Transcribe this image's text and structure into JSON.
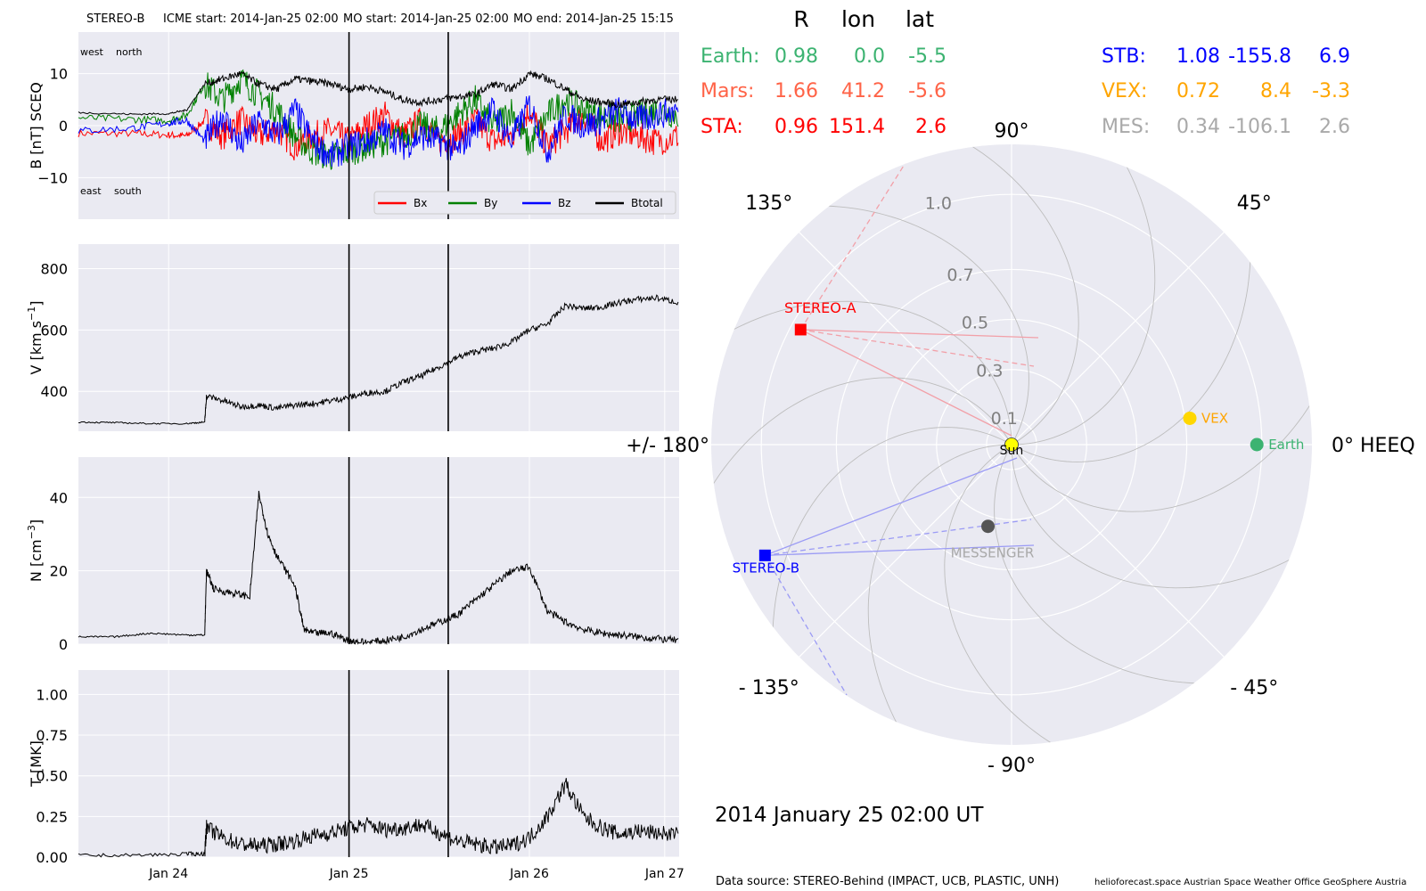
{
  "header": {
    "spacecraft": "STEREO-B",
    "icme_start": "ICME start: 2014-Jan-25 02:00",
    "mo_start": "MO start: 2014-Jan-25 02:00",
    "mo_end": "MO end: 2014-Jan-25 15:15"
  },
  "footer": {
    "source": "Data source: STEREO-Behind (IMPACT, UCB, PLASTIC, UNH)",
    "credits": "helioforecast.space   Austrian Space Weather Office   GeoSphere Austria"
  },
  "colors": {
    "panel_bg": "#EAEAF2",
    "grid": "#ffffff",
    "bx": "#ff0000",
    "by": "#008000",
    "bz": "#0000ff",
    "btotal": "#000000",
    "earth": "#3cb371",
    "mars": "#ff6347",
    "sta": "#ff0000",
    "stb": "#0000ff",
    "vex": "#ffa500",
    "mes": "#a9a9a9",
    "vex_marker": "#ffd700",
    "mes_marker": "#555555",
    "sun": "#ffff00"
  },
  "chart_data": [
    {
      "type": "line",
      "panel": "magnetic field",
      "ylabel": "B [nT] SCEQ",
      "ylim": [
        -18,
        18
      ],
      "yticks": [
        -10,
        0,
        10
      ],
      "xlim": [
        0,
        3.33
      ],
      "annotations": [
        "west",
        "north",
        "east",
        "south"
      ],
      "legend": {
        "placement": "lower-right",
        "entries": [
          "Bx",
          "By",
          "Bz",
          "Btotal"
        ]
      },
      "series": [
        {
          "name": "Bx",
          "color_key": "bx",
          "x": [
            0,
            0.3,
            0.5,
            0.6,
            0.7,
            0.8,
            0.9,
            1.0,
            1.1,
            1.2,
            1.3,
            1.4,
            1.5,
            1.6,
            1.7,
            1.8,
            1.9,
            2.0,
            2.1,
            2.2,
            2.3,
            2.4,
            2.5,
            2.6,
            2.7,
            2.8,
            2.9,
            3.0,
            3.1,
            3.2,
            3.33
          ],
          "y": [
            -1.5,
            -1.5,
            -1.8,
            -2,
            1,
            -2,
            1,
            -2,
            -0.5,
            -4,
            -2,
            -1,
            -3,
            0,
            2,
            -2,
            1,
            -3,
            -2,
            1,
            -3,
            -2,
            3,
            -4,
            -1,
            2,
            -3,
            -1,
            -2,
            -3,
            -2
          ]
        },
        {
          "name": "By",
          "color_key": "by",
          "x": [
            0,
            0.3,
            0.5,
            0.6,
            0.7,
            0.8,
            0.9,
            1.0,
            1.1,
            1.2,
            1.3,
            1.4,
            1.5,
            1.6,
            1.7,
            1.8,
            1.9,
            2.0,
            2.1,
            2.2,
            2.3,
            2.4,
            2.5,
            2.6,
            2.7,
            2.8,
            2.9,
            3.0,
            3.1,
            3.2,
            3.33
          ],
          "y": [
            1.5,
            1.2,
            1.0,
            2,
            8,
            5,
            9,
            6,
            3,
            -2,
            -5,
            -6,
            -5,
            -4,
            -3,
            -2,
            0,
            -1,
            2,
            5,
            0,
            3,
            -4,
            2,
            5,
            3,
            2,
            1,
            2,
            3,
            2
          ]
        },
        {
          "name": "Bz",
          "color_key": "bz",
          "x": [
            0,
            0.3,
            0.5,
            0.6,
            0.7,
            0.8,
            0.9,
            1.0,
            1.1,
            1.2,
            1.3,
            1.4,
            1.5,
            1.6,
            1.7,
            1.8,
            1.9,
            2.0,
            2.1,
            2.2,
            2.3,
            2.4,
            2.5,
            2.6,
            2.7,
            2.8,
            2.9,
            3.0,
            3.1,
            3.2,
            3.33
          ],
          "y": [
            -1,
            -0.5,
            0.5,
            1,
            -3,
            2,
            -4,
            1,
            -2,
            3,
            -3,
            -6,
            -4,
            -3,
            -1,
            -4,
            -2,
            -3,
            -5,
            0,
            3,
            -3,
            4,
            -5,
            2,
            0,
            1,
            3,
            1,
            2,
            3
          ]
        },
        {
          "name": "Btotal",
          "color_key": "btotal",
          "x": [
            0,
            0.3,
            0.5,
            0.6,
            0.7,
            0.8,
            0.9,
            1.0,
            1.1,
            1.2,
            1.3,
            1.4,
            1.5,
            1.6,
            1.7,
            1.8,
            1.9,
            2.0,
            2.1,
            2.2,
            2.3,
            2.4,
            2.5,
            2.6,
            2.7,
            2.8,
            2.9,
            3.0,
            3.1,
            3.2,
            3.33
          ],
          "y": [
            2.5,
            2.2,
            2.3,
            3,
            8,
            9,
            10,
            8,
            7,
            9,
            8.5,
            8,
            7,
            7.5,
            6.5,
            5,
            4.5,
            5,
            5.5,
            6,
            8,
            7,
            10,
            9,
            7,
            5,
            4.5,
            4,
            4.5,
            5,
            5
          ]
        }
      ]
    },
    {
      "type": "line",
      "panel": "speed",
      "ylabel": "V [km s",
      "ylabel_exp": "−1",
      "ylabel_end": "]",
      "ylim": [
        270,
        880
      ],
      "yticks": [
        400,
        600,
        800
      ],
      "xlim": [
        0,
        3.33
      ],
      "series": [
        {
          "name": "",
          "x": [
            0,
            0.2,
            0.4,
            0.6,
            0.7,
            0.71,
            0.8,
            0.9,
            1.0,
            1.1,
            1.2,
            1.3,
            1.4,
            1.5,
            1.6,
            1.7,
            1.8,
            1.9,
            2.0,
            2.1,
            2.2,
            2.3,
            2.4,
            2.5,
            2.6,
            2.7,
            2.8,
            2.9,
            3.0,
            3.1,
            3.2,
            3.33
          ],
          "y": [
            300,
            298,
            295,
            295,
            300,
            385,
            370,
            350,
            355,
            345,
            355,
            360,
            370,
            380,
            395,
            400,
            430,
            450,
            480,
            510,
            530,
            540,
            560,
            600,
            620,
            680,
            670,
            675,
            690,
            700,
            705,
            690
          ]
        }
      ]
    },
    {
      "type": "line",
      "panel": "density",
      "ylabel": "N [cm",
      "ylabel_exp": "−3",
      "ylabel_end": "]",
      "ylim": [
        0,
        51
      ],
      "yticks": [
        0,
        20,
        40
      ],
      "xlim": [
        0,
        3.33
      ],
      "series": [
        {
          "name": "",
          "x": [
            0,
            0.2,
            0.4,
            0.6,
            0.7,
            0.71,
            0.75,
            0.85,
            0.95,
            1.0,
            1.05,
            1.1,
            1.2,
            1.25,
            1.3,
            1.4,
            1.5,
            1.6,
            1.7,
            1.8,
            1.9,
            2.0,
            2.1,
            2.2,
            2.3,
            2.4,
            2.5,
            2.6,
            2.7,
            2.8,
            2.9,
            3.0,
            3.1,
            3.2,
            3.33
          ],
          "y": [
            2,
            2,
            3,
            2.5,
            2.5,
            20,
            15,
            14,
            13,
            41,
            30,
            24,
            16,
            4,
            3,
            3,
            1,
            0.5,
            1,
            2,
            4,
            6,
            8,
            12,
            16,
            20,
            21,
            9,
            6,
            4,
            3,
            2.5,
            2,
            1.5,
            1
          ]
        }
      ]
    },
    {
      "type": "line",
      "panel": "temperature",
      "ylabel": "T [MK]",
      "ylim": [
        0,
        1.15
      ],
      "yticks": [
        0.0,
        0.25,
        0.5,
        0.75,
        1.0
      ],
      "xlim": [
        0,
        3.33
      ],
      "xticks": [
        {
          "value": 0.5,
          "label": "Jan 24"
        },
        {
          "value": 1.5,
          "label": "Jan 25"
        },
        {
          "value": 2.5,
          "label": "Jan 26"
        },
        {
          "value": 3.25,
          "label": "Jan 27"
        }
      ],
      "series": [
        {
          "name": "",
          "x": [
            0,
            0.3,
            0.6,
            0.7,
            0.71,
            0.8,
            0.9,
            1.0,
            1.1,
            1.2,
            1.3,
            1.4,
            1.5,
            1.6,
            1.7,
            1.8,
            1.9,
            2.0,
            2.1,
            2.2,
            2.3,
            2.4,
            2.5,
            2.6,
            2.7,
            2.8,
            2.9,
            3.0,
            3.1,
            3.2,
            3.33
          ],
          "y": [
            0.01,
            0.01,
            0.02,
            0.02,
            0.18,
            0.12,
            0.08,
            0.07,
            0.08,
            0.1,
            0.13,
            0.15,
            0.18,
            0.2,
            0.17,
            0.18,
            0.2,
            0.15,
            0.1,
            0.08,
            0.06,
            0.07,
            0.12,
            0.25,
            0.45,
            0.25,
            0.18,
            0.14,
            0.16,
            0.15,
            0.14
          ]
        }
      ]
    },
    {
      "type": "scatter",
      "panel": "polar positions",
      "angular_labels": [
        {
          "deg": 0,
          "label": "0° HEEQ"
        },
        {
          "deg": 45,
          "label": "45°"
        },
        {
          "deg": 90,
          "label": "90°"
        },
        {
          "deg": 135,
          "label": "135°"
        },
        {
          "deg": 180,
          "label": "+/- 180°"
        },
        {
          "deg": -135,
          "label": "- 135°"
        },
        {
          "deg": -90,
          "label": "- 90°"
        },
        {
          "deg": -45,
          "label": "- 45°"
        }
      ],
      "radial_ticks": [
        {
          "r": 0.1,
          "label": "0.1"
        },
        {
          "r": 0.3,
          "label": "0.3"
        },
        {
          "r": 0.5,
          "label": "0.5"
        },
        {
          "r": 0.7,
          "label": "0.7"
        },
        {
          "r": 1.0,
          "label": "1.0"
        }
      ],
      "rmax": 1.2,
      "bodies": [
        {
          "name": "Sun",
          "r": 0,
          "lon": 0,
          "color_key": "sun",
          "marker": "circle"
        },
        {
          "name": "Earth",
          "r": 0.98,
          "lon": 0.0,
          "color_key": "earth",
          "marker": "circle"
        },
        {
          "name": "VEX",
          "r": 0.72,
          "lon": 8.4,
          "color_key": "vex_marker",
          "label_color_key": "vex",
          "marker": "circle"
        },
        {
          "name": "MESSENGER",
          "r": 0.34,
          "lon": -106.1,
          "color_key": "mes_marker",
          "label_color_key": "mes",
          "marker": "circle"
        },
        {
          "name": "STEREO-A",
          "r": 0.96,
          "lon": 151.4,
          "color_key": "sta",
          "marker": "square"
        },
        {
          "name": "STEREO-B",
          "r": 1.08,
          "lon": -155.8,
          "color_key": "stb",
          "marker": "square"
        }
      ],
      "table_header": {
        "r": "R",
        "lon": "lon",
        "lat": "lat"
      },
      "table_left": [
        {
          "label": "Earth:",
          "r": "0.98",
          "lon": "0.0",
          "lat": "-5.5",
          "color_key": "earth"
        },
        {
          "label": "Mars:",
          "r": "1.66",
          "lon": "41.2",
          "lat": "-5.6",
          "color_key": "mars"
        },
        {
          "label": "STA:",
          "r": "0.96",
          "lon": "151.4",
          "lat": "2.6",
          "color_key": "sta"
        }
      ],
      "table_right": [
        {
          "label": "STB:",
          "r": "1.08",
          "lon": "-155.8",
          "lat": "6.9",
          "color_key": "stb"
        },
        {
          "label": "VEX:",
          "r": "0.72",
          "lon": "8.4",
          "lat": "-3.3",
          "color_key": "vex"
        },
        {
          "label": "MES:",
          "r": "0.34",
          "lon": "-106.1",
          "lat": "2.6",
          "color_key": "mes"
        }
      ],
      "timestamp": "2014 January 25  02:00 UT"
    }
  ]
}
